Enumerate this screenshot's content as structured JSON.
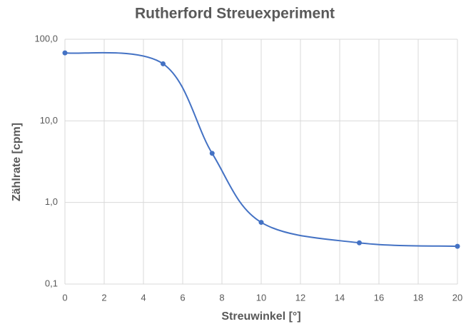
{
  "chart_data": {
    "type": "scatter",
    "title": "Rutherford Streuexperiment",
    "x_label": "Streuwinkel [°]",
    "y_label": "Zählrate [cpm]",
    "x": [
      0,
      5,
      7.5,
      10,
      15,
      20
    ],
    "series": [
      {
        "color": "#4472c4",
        "values": [
          68,
          50,
          4,
          0.57,
          0.32,
          0.29
        ]
      }
    ],
    "smooth": true,
    "markers": true,
    "xlim": [
      0,
      20
    ],
    "xticks": [
      0,
      2,
      4,
      6,
      8,
      10,
      12,
      14,
      16,
      18,
      20
    ],
    "ylim": [
      0.1,
      100
    ],
    "y_scale": "log",
    "yticks": [
      {
        "value": 0.1,
        "label": "0,1"
      },
      {
        "value": 1,
        "label": "1,0"
      },
      {
        "value": 10,
        "label": "10,0"
      },
      {
        "value": 100,
        "label": "100,0"
      }
    ],
    "grid": true
  }
}
